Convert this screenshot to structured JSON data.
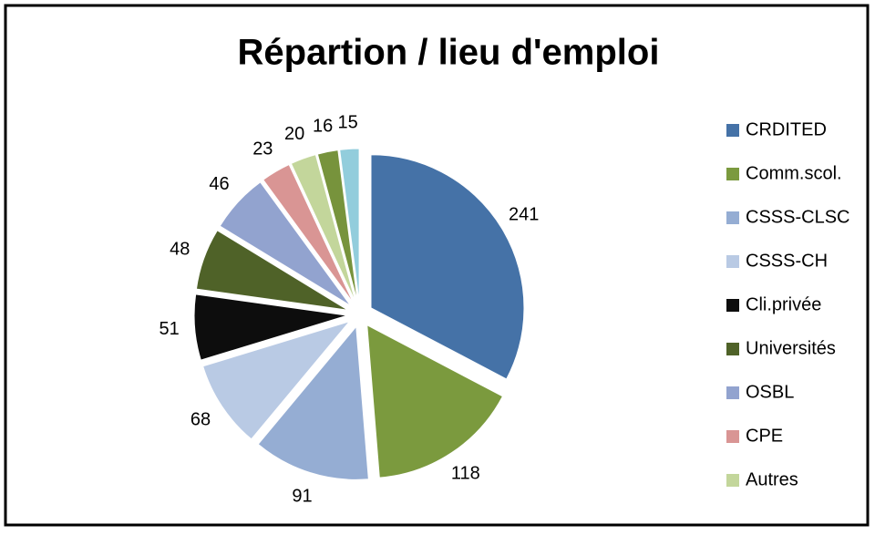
{
  "chart_data": {
    "type": "pie",
    "title": "Répartion / lieu d'emploi",
    "categories": [
      "CRDITED",
      "Comm.scol.",
      "CSSS-CLSC",
      "CSSS-CH",
      "Cli.privée",
      "Universités",
      "OSBL",
      "CPE",
      "Autres",
      null,
      null
    ],
    "values": [
      241,
      118,
      91,
      68,
      51,
      48,
      46,
      23,
      20,
      16,
      15
    ],
    "colors": [
      "#4572a7",
      "#7b9a3e",
      "#95add3",
      "#b9cae4",
      "#0d0d0d",
      "#4f6228",
      "#92a3cf",
      "#d99594",
      "#c3d69b",
      "#77933c",
      "#92cddc"
    ],
    "legend": "right"
  }
}
